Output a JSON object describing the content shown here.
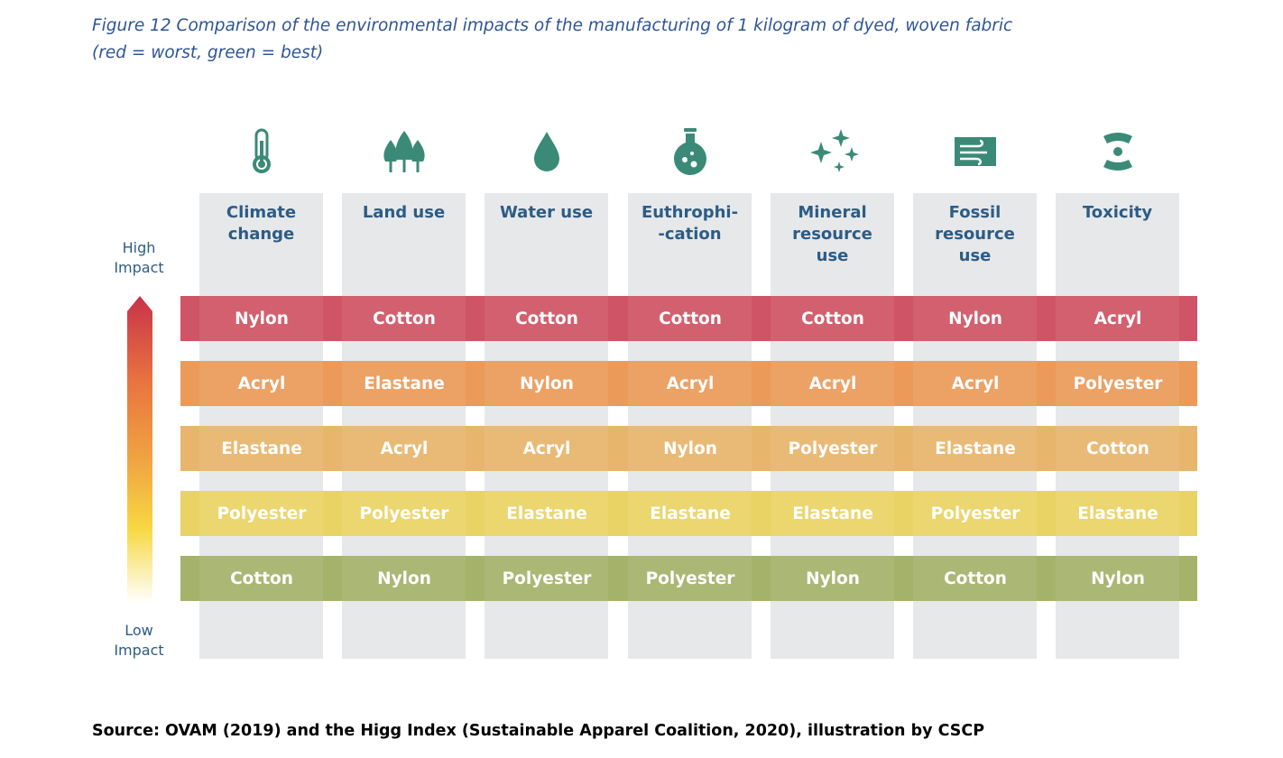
{
  "caption": {
    "line1": "Figure 12 Comparison of the environmental impacts of the manufacturing of 1 kilogram of dyed, woven fabric",
    "line2": "(red = worst, green = best)"
  },
  "axis": {
    "high": [
      "High",
      "Impact"
    ],
    "low": [
      "Low",
      "Impact"
    ]
  },
  "columns": [
    {
      "icon": "thermometer-icon",
      "header": [
        "Climate",
        "change"
      ]
    },
    {
      "icon": "trees-icon",
      "header": [
        "Land use"
      ]
    },
    {
      "icon": "water-drop-icon",
      "header": [
        "Water use"
      ]
    },
    {
      "icon": "flask-icon",
      "header": [
        "Euthrophi-",
        "-cation"
      ]
    },
    {
      "icon": "sparkles-icon",
      "header": [
        "Mineral",
        "resource",
        "use"
      ]
    },
    {
      "icon": "fossil-fuel-icon",
      "header": [
        "Fossil",
        "resource",
        "use"
      ]
    },
    {
      "icon": "toxicity-icon",
      "header": [
        "Toxicity"
      ]
    }
  ],
  "rows": [
    {
      "color": "#cf5465",
      "cells": [
        "Nylon",
        "Cotton",
        "Cotton",
        "Cotton",
        "Cotton",
        "Nylon",
        "Acryl"
      ]
    },
    {
      "color": "#eb9a5a",
      "cells": [
        "Acryl",
        "Elastane",
        "Nylon",
        "Acryl",
        "Acryl",
        "Acryl",
        "Polyester"
      ]
    },
    {
      "color": "#e8b56c",
      "cells": [
        "Elastane",
        "Acryl",
        "Acryl",
        "Nylon",
        "Polyester",
        "Elastane",
        "Cotton"
      ]
    },
    {
      "color": "#ead365",
      "cells": [
        "Polyester",
        "Polyester",
        "Elastane",
        "Elastane",
        "Elastane",
        "Polyester",
        "Elastane"
      ]
    },
    {
      "color": "#a5b26a",
      "cells": [
        "Cotton",
        "Nylon",
        "Polyester",
        "Polyester",
        "Nylon",
        "Cotton",
        "Nylon"
      ]
    }
  ],
  "source": "Source: OVAM (2019) and the Higg Index (Sustainable Apparel Coalition, 2020), illustration by CSCP",
  "colors": {
    "icon": "#3b8a78",
    "header_text": "#2c5c86",
    "caption_text": "#2f5597",
    "column_bg": "#e7e8ea"
  }
}
